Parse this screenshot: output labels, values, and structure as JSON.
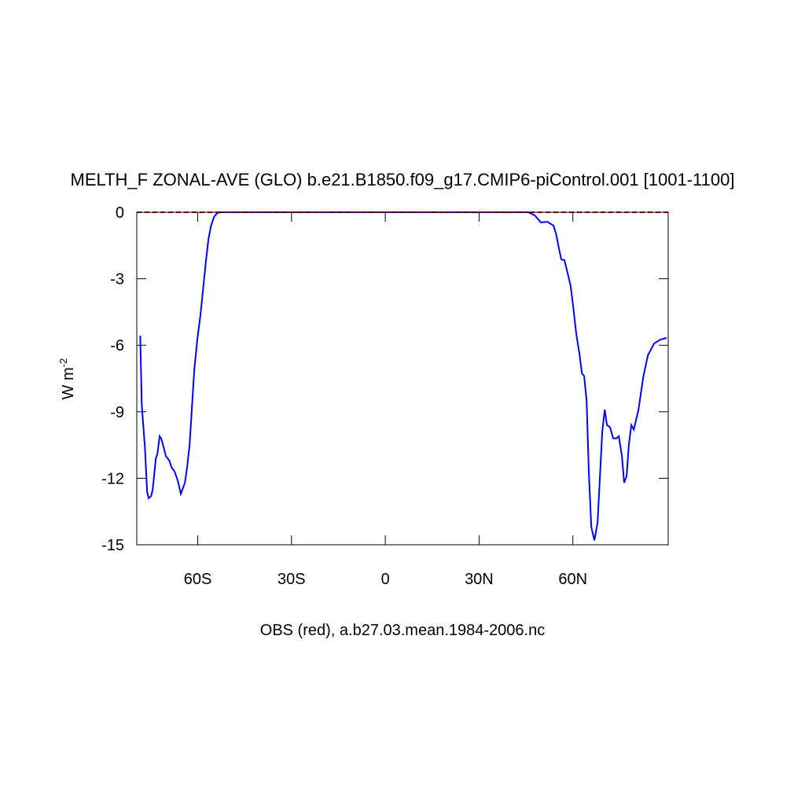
{
  "chart_data": {
    "type": "line",
    "title": "MELTH_F ZONAL-AVE (GLO) b.e21.B1850.f09_g17.CMIP6-piControl.001 [1001-1100]",
    "subtitle": "OBS (red), a.b27.03.mean.1984-2006.nc",
    "ylabel": "W m",
    "ylabel_exponent": "-2",
    "xlim": [
      -79.5,
      90.5
    ],
    "ylim": [
      -15,
      0
    ],
    "xticks": [
      {
        "value": -60,
        "label": "60S"
      },
      {
        "value": -30,
        "label": "30S"
      },
      0,
      {
        "value": 30,
        "label": "30N"
      },
      {
        "value": 60,
        "label": "60N"
      }
    ],
    "yticks": [
      -15,
      -12,
      -9,
      -6,
      -3,
      0
    ],
    "series": [
      {
        "color": "#0000ff",
        "x": [
          -78.4,
          -77.9,
          -76.9,
          -76.2,
          -75.7,
          -74.9,
          -74.4,
          -73.4,
          -72.9,
          -72.2,
          -71.7,
          -70.9,
          -70.2,
          -69.1,
          -68.4,
          -67.4,
          -66.4,
          -65.4,
          -64.1,
          -63.4,
          -62.6,
          -61.9,
          -61.1,
          -60.1,
          -59.1,
          -58.1,
          -57.3,
          -56.6,
          -55.8,
          -54.8,
          -53.8,
          -52.8,
          0,
          45.8,
          47.8,
          49.8,
          51.8,
          53.8,
          54.6,
          55.6,
          56.3,
          57.3,
          58.3,
          59.3,
          60.1,
          61.1,
          62.1,
          62.9,
          63.6,
          64.4,
          65.1,
          65.9,
          66.9,
          67.9,
          68.6,
          69.4,
          70.2,
          70.9,
          71.9,
          72.9,
          73.9,
          74.7,
          75.7,
          76.4,
          77.2,
          77.9,
          78.7,
          79.5,
          81.0,
          82.5,
          84.0,
          86.0,
          88.0,
          90.0
        ],
        "values": [
          -5.57,
          -8.7,
          -10.6,
          -12.6,
          -12.9,
          -12.8,
          -12.5,
          -11.1,
          -10.9,
          -10.1,
          -10.2,
          -10.6,
          -11.0,
          -11.2,
          -11.5,
          -11.7,
          -12.1,
          -12.7,
          -12.2,
          -11.5,
          -10.5,
          -8.9,
          -7.1,
          -5.7,
          -4.6,
          -3.2,
          -2.1,
          -1.24,
          -0.64,
          -0.21,
          -0.04,
          0,
          0,
          0,
          -0.14,
          -0.46,
          -0.43,
          -0.6,
          -0.96,
          -1.67,
          -2.13,
          -2.16,
          -2.73,
          -3.33,
          -4.26,
          -5.5,
          -6.38,
          -7.27,
          -7.38,
          -8.5,
          -11.7,
          -14.2,
          -14.8,
          -14.0,
          -12.1,
          -9.9,
          -8.9,
          -9.6,
          -9.7,
          -10.2,
          -10.2,
          -10.1,
          -11.0,
          -12.2,
          -11.9,
          -10.5,
          -9.6,
          -9.8,
          -8.9,
          -7.45,
          -6.45,
          -5.92,
          -5.74,
          -5.67
        ]
      },
      {
        "color": "#cc0000",
        "dashed": true,
        "x": [
          -79.5,
          90.5
        ],
        "values": [
          0,
          0
        ]
      }
    ]
  }
}
